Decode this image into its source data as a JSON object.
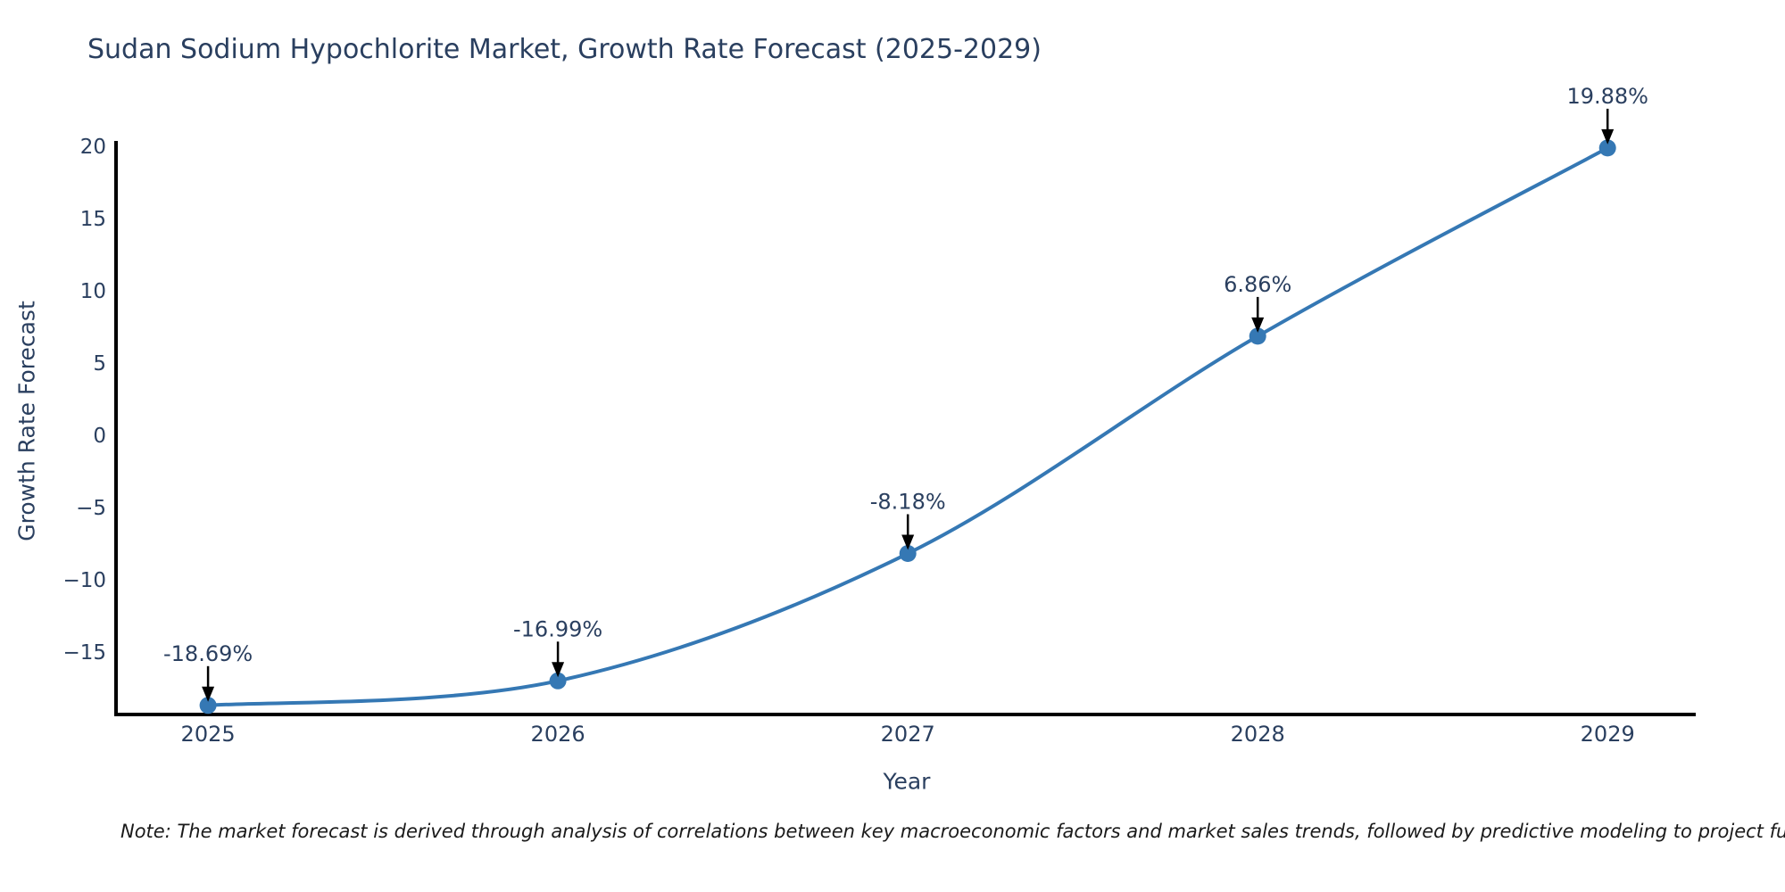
{
  "page": {
    "background": "#ffffff"
  },
  "chart_data": {
    "type": "line",
    "title": "Sudan Sodium Hypochlorite Market, Growth Rate Forecast (2025-2029)",
    "xlabel": "Year",
    "ylabel": "Growth Rate Forecast",
    "x": [
      2025,
      2026,
      2027,
      2028,
      2029
    ],
    "x_tick_labels": [
      "2025",
      "2026",
      "2027",
      "2028",
      "2029"
    ],
    "series": [
      {
        "name": "Growth Rate Forecast",
        "values": [
          -18.69,
          -16.99,
          -8.18,
          6.86,
          19.88
        ]
      }
    ],
    "point_labels": [
      "-18.69%",
      "-16.99%",
      "-8.18%",
      "6.86%",
      "19.88%"
    ],
    "y_ticks": {
      "values": [
        20,
        15,
        10,
        5,
        0,
        -5,
        -10,
        -15
      ],
      "labels": [
        "20",
        "15",
        "10",
        "5",
        "0",
        "−5",
        "−10",
        "−15"
      ]
    },
    "xlim": [
      2024.737,
      2029.252
    ],
    "ylim": [
      -19.32,
      20.37
    ],
    "grid": false,
    "legend_position": "none",
    "line_shape": "spline",
    "colors": {
      "line": "#3578b4",
      "marker": "#3578b4",
      "axis": "#000000",
      "tick_text": "#2a3f5f",
      "annotation_text": "#2a3f5f",
      "annotation_arrow": "#000000"
    },
    "note": "Note: The market forecast is derived through analysis of correlations between key macroeconomic factors and market sales trends, followed by predictive modeling to project future sales."
  }
}
